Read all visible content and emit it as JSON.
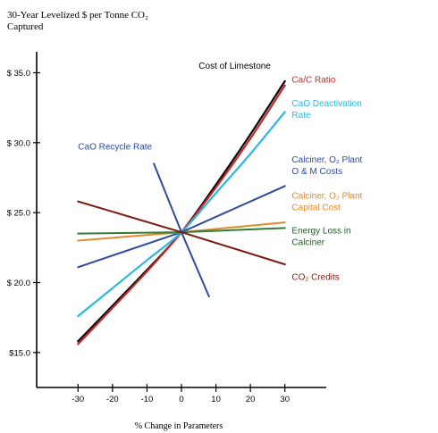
{
  "chart_data": {
    "type": "line",
    "ylabel_line1": "30-Year Levelized $ per Tonne CO₂",
    "ylabel_line2": "Captured",
    "xlabel": "% Change in Parameters",
    "xlim": [
      -42,
      42
    ],
    "ylim": [
      12.5,
      36.5
    ],
    "xticks": [
      -30,
      -20,
      -10,
      0,
      10,
      20,
      30
    ],
    "yticks": [
      {
        "value": 15,
        "label": "$15.0"
      },
      {
        "value": 20,
        "label": "$ 20.0"
      },
      {
        "value": 25,
        "label": "$ 25.0"
      },
      {
        "value": 30,
        "label": "$ 30.0"
      },
      {
        "value": 35,
        "label": "$ 35.0"
      }
    ],
    "series": [
      {
        "name": "Cost of Limestone",
        "color": "#000000",
        "curve": true,
        "points": [
          [
            -30,
            15.8
          ],
          [
            -10,
            20.9
          ],
          [
            0,
            23.6
          ],
          [
            10,
            27.0
          ],
          [
            20,
            30.6
          ],
          [
            30,
            34.4
          ]
        ]
      },
      {
        "name": "Ca/C Ratio",
        "color": "#c62828",
        "curve": true,
        "points": [
          [
            -30,
            15.6
          ],
          [
            -10,
            20.8
          ],
          [
            0,
            23.6
          ],
          [
            10,
            26.8
          ],
          [
            20,
            30.3
          ],
          [
            30,
            34.1
          ]
        ]
      },
      {
        "name": "CaO Deactivation Rate",
        "color": "#2bb8e0",
        "curve": true,
        "points": [
          [
            -30,
            17.6
          ],
          [
            -10,
            21.6
          ],
          [
            0,
            23.6
          ],
          [
            10,
            26.4
          ],
          [
            20,
            29.2
          ],
          [
            30,
            32.2
          ]
        ]
      },
      {
        "name": "CaO Recycle Rate",
        "color": "#2e4a9e",
        "points": [
          [
            -8,
            28.5
          ],
          [
            0,
            23.6
          ],
          [
            8,
            19.0
          ]
        ]
      },
      {
        "name": "Calciner, O₂ Plant O & M Costs",
        "color": "#2e4a9e",
        "points": [
          [
            -30,
            21.1
          ],
          [
            0,
            23.6
          ],
          [
            30,
            26.9
          ]
        ]
      },
      {
        "name": "Calciner, O₂ Plant Capital Cost",
        "color": "#e08a2c",
        "points": [
          [
            -30,
            23.0
          ],
          [
            0,
            23.6
          ],
          [
            30,
            24.3
          ]
        ]
      },
      {
        "name": "Energy Loss in Calciner",
        "color": "#2e7d32",
        "points": [
          [
            -30,
            23.5
          ],
          [
            0,
            23.6
          ],
          [
            30,
            23.9
          ]
        ]
      },
      {
        "name": "CO₂ Credits",
        "color": "#7b1a10",
        "points": [
          [
            -30,
            25.8
          ],
          [
            0,
            23.6
          ],
          [
            30,
            21.3
          ]
        ]
      }
    ],
    "labels": [
      {
        "lines": [
          "Cost of Limestone"
        ],
        "color": "#000000",
        "at": [
          5,
          35.3
        ]
      },
      {
        "lines": [
          "Ca/C Ratio"
        ],
        "color": "#c62828",
        "at": [
          32,
          34.3
        ]
      },
      {
        "lines": [
          "CaO Deactivation",
          "Rate"
        ],
        "color": "#2bb8e0",
        "at": [
          32,
          32.6
        ]
      },
      {
        "lines": [
          "CaO Recycle Rate"
        ],
        "color": "#2e4a9e",
        "at": [
          -30,
          29.5
        ]
      },
      {
        "lines": [
          "Calciner, O₂ Plant",
          "O & M Costs"
        ],
        "color": "#2e4a9e",
        "at": [
          32,
          28.6
        ]
      },
      {
        "lines": [
          "Calciner, O₂ Plant",
          "Capital Cost"
        ],
        "color": "#e08a2c",
        "at": [
          32,
          26.0
        ]
      },
      {
        "lines": [
          "Energy Loss in",
          "Calciner"
        ],
        "color": "#1b5e20",
        "at": [
          32,
          23.5
        ]
      },
      {
        "lines": [
          "CO₂ Credits"
        ],
        "color": "#7b1a10",
        "at": [
          32,
          20.2
        ]
      }
    ]
  }
}
